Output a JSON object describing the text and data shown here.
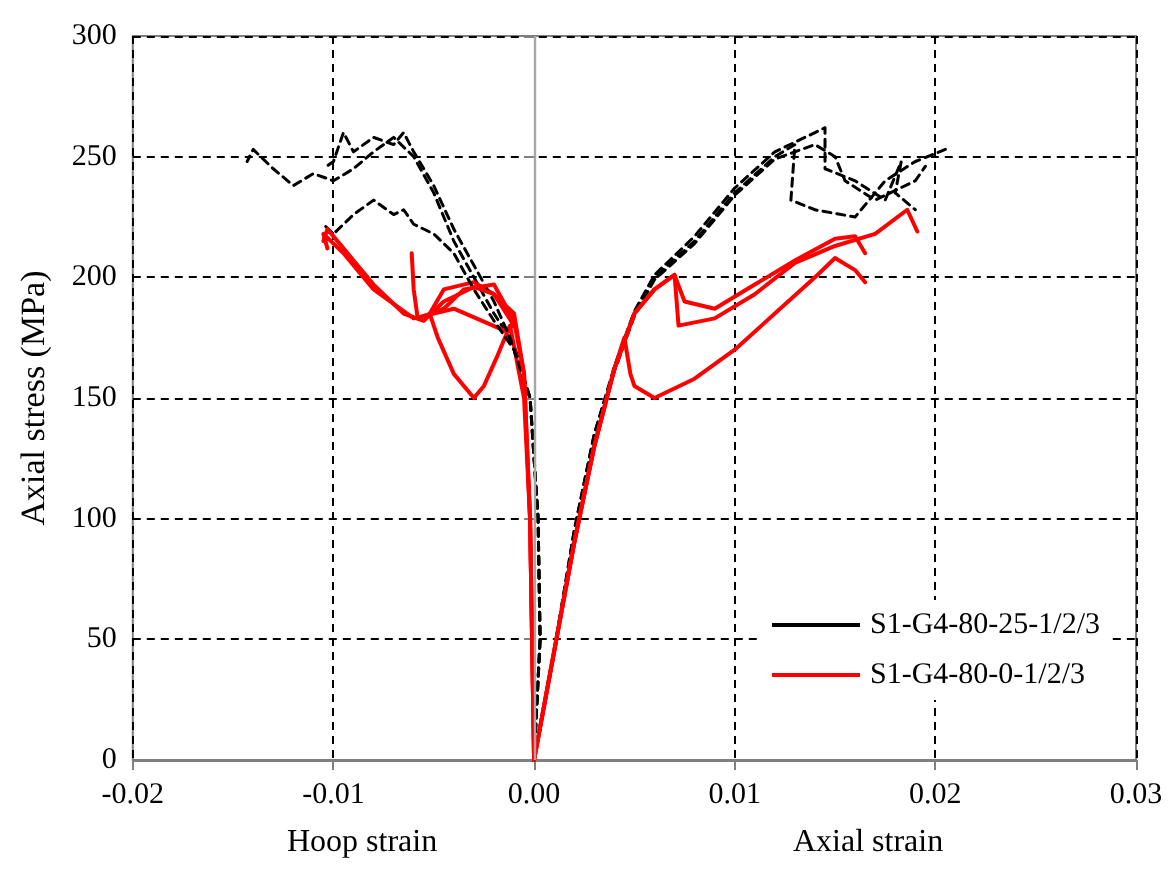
{
  "chart_data": {
    "type": "line",
    "ylabel": "Axial stress (MPa)",
    "annotations": [
      "Hoop strain",
      "Axial strain"
    ],
    "xlim": [
      -0.02,
      0.03
    ],
    "xticks": [
      -0.02,
      -0.01,
      {
        "value": 0,
        "label": "0.00"
      },
      0.01,
      0.02,
      0.03
    ],
    "ylim": [
      0,
      300
    ],
    "yticks": [
      0,
      50,
      100,
      150,
      200,
      250,
      300
    ],
    "grid": true,
    "legend": "bottom right",
    "marker": "none",
    "ref_lines": [
      {
        "axis": "x",
        "value": 0,
        "color": "#a6a6a6",
        "line_style": "solid"
      }
    ],
    "series": [
      {
        "name": "S1-G4-80-25-1/2/3",
        "color": "#000000",
        "line_style": "dashed",
        "x": [
          0,
          0.0003,
          0.0002,
          -0.0002,
          -0.001,
          -0.002,
          -0.003,
          -0.004,
          -0.005,
          -0.006,
          -0.007,
          -0.008,
          -0.009,
          -0.01,
          -0.011,
          -0.012,
          -0.013,
          -0.014,
          -0.0143
        ],
        "values": [
          0,
          50,
          100,
          150,
          172,
          185,
          200,
          215,
          235,
          250,
          258,
          252,
          245,
          240,
          243,
          238,
          245,
          253,
          248
        ]
      },
      {
        "name": "S1-G4-80-0-1/2/3",
        "color": "#ff0000",
        "line_style": "solid",
        "x": [
          0,
          -0.0002,
          -0.0005,
          -0.0012,
          -0.0018,
          -0.0025,
          -0.003,
          -0.004,
          -0.0048,
          -0.0052,
          -0.0045,
          -0.003,
          -0.002,
          -0.001,
          -0.0015,
          -0.004,
          -0.006,
          -0.008,
          -0.0095,
          -0.0105,
          -0.0103
        ],
        "values": [
          0,
          100,
          150,
          180,
          168,
          155,
          150,
          160,
          175,
          185,
          195,
          198,
          193,
          180,
          178,
          187,
          183,
          195,
          210,
          218,
          212
        ]
      },
      {
        "color": "#000000",
        "line_style": "dashed",
        "x": [
          0,
          0.0003,
          0.0002,
          -0.0002,
          -0.0012,
          -0.002,
          -0.003,
          -0.004,
          -0.005,
          -0.006,
          -0.0065,
          -0.007,
          -0.008,
          -0.009,
          -0.0095,
          -0.01,
          -0.0105
        ],
        "values": [
          0,
          50,
          100,
          150,
          175,
          190,
          205,
          220,
          238,
          252,
          260,
          255,
          258,
          252,
          260,
          248,
          245
        ]
      },
      {
        "color": "#000000",
        "line_style": "dashed",
        "x": [
          0,
          0.0003,
          0.0002,
          -0.0002,
          -0.001,
          -0.002,
          -0.003,
          -0.004,
          -0.005,
          -0.006,
          -0.0065,
          -0.007,
          -0.008,
          -0.009,
          -0.0095,
          -0.01,
          -0.0105
        ],
        "values": [
          0,
          50,
          100,
          150,
          170,
          182,
          195,
          210,
          218,
          222,
          228,
          226,
          232,
          226,
          222,
          218,
          222
        ]
      },
      {
        "color": "#ff0000",
        "line_style": "solid",
        "x": [
          0,
          -0.0002,
          -0.0005,
          -0.001,
          -0.002,
          -0.003,
          -0.0045,
          -0.0055,
          -0.0065,
          -0.008,
          -0.0095,
          -0.0103,
          -0.0105
        ],
        "values": [
          0,
          100,
          160,
          185,
          193,
          196,
          190,
          182,
          185,
          197,
          212,
          220,
          215
        ]
      },
      {
        "color": "#ff0000",
        "line_style": "solid",
        "x": [
          0,
          -0.0002,
          -0.0005,
          -0.001,
          -0.002,
          -0.0035,
          -0.0045,
          -0.0058,
          -0.006,
          -0.0061
        ],
        "values": [
          0,
          100,
          160,
          182,
          197,
          195,
          187,
          183,
          195,
          210
        ]
      },
      {
        "color": "#000000",
        "line_style": "dashed",
        "x": [
          0,
          0.001,
          0.002,
          0.003,
          0.004,
          0.005,
          0.006,
          0.008,
          0.01,
          0.012,
          0.013,
          0.0128,
          0.014,
          0.016,
          0.0175,
          0.019,
          0.0205
        ],
        "values": [
          0,
          45,
          95,
          135,
          162,
          185,
          200,
          215,
          235,
          250,
          255,
          232,
          228,
          225,
          240,
          248,
          253
        ]
      },
      {
        "color": "#000000",
        "line_style": "dashed",
        "x": [
          0,
          0.001,
          0.002,
          0.003,
          0.004,
          0.005,
          0.006,
          0.008,
          0.01,
          0.012,
          0.014,
          0.0145,
          0.0145,
          0.016,
          0.0175,
          0.0183,
          0.018,
          0.019
        ],
        "values": [
          0,
          45,
          95,
          135,
          163,
          186,
          201,
          217,
          237,
          252,
          260,
          262,
          245,
          240,
          232,
          248,
          235,
          228
        ]
      },
      {
        "color": "#000000",
        "line_style": "dashed",
        "x": [
          0,
          0.001,
          0.002,
          0.003,
          0.004,
          0.005,
          0.006,
          0.008,
          0.01,
          0.012,
          0.014,
          0.015,
          0.0155,
          0.017,
          0.019,
          0.0195
        ],
        "values": [
          0,
          44,
          94,
          134,
          161,
          184,
          199,
          214,
          234,
          249,
          255,
          250,
          240,
          232,
          240,
          246
        ]
      },
      {
        "color": "#ff0000",
        "line_style": "solid",
        "x": [
          0,
          0.001,
          0.002,
          0.003,
          0.004,
          0.0045,
          0.0048,
          0.005,
          0.006,
          0.008,
          0.01,
          0.012,
          0.014,
          0.015,
          0.016,
          0.0165
        ],
        "values": [
          0,
          45,
          90,
          130,
          162,
          175,
          160,
          155,
          150,
          158,
          170,
          185,
          200,
          208,
          203,
          198
        ]
      },
      {
        "color": "#ff0000",
        "line_style": "solid",
        "x": [
          0,
          0.001,
          0.002,
          0.003,
          0.004,
          0.005,
          0.006,
          0.007,
          0.0075,
          0.009,
          0.011,
          0.013,
          0.015,
          0.016,
          0.0165
        ],
        "values": [
          0,
          45,
          90,
          130,
          162,
          185,
          195,
          201,
          190,
          187,
          197,
          207,
          216,
          217,
          210
        ]
      },
      {
        "color": "#ff0000",
        "line_style": "solid",
        "x": [
          0,
          0.001,
          0.002,
          0.003,
          0.004,
          0.005,
          0.006,
          0.007,
          0.0072,
          0.009,
          0.011,
          0.013,
          0.015,
          0.017,
          0.0186,
          0.0191
        ],
        "values": [
          0,
          45,
          90,
          130,
          162,
          185,
          195,
          201,
          180,
          183,
          193,
          206,
          213,
          218,
          228,
          219
        ]
      }
    ]
  }
}
